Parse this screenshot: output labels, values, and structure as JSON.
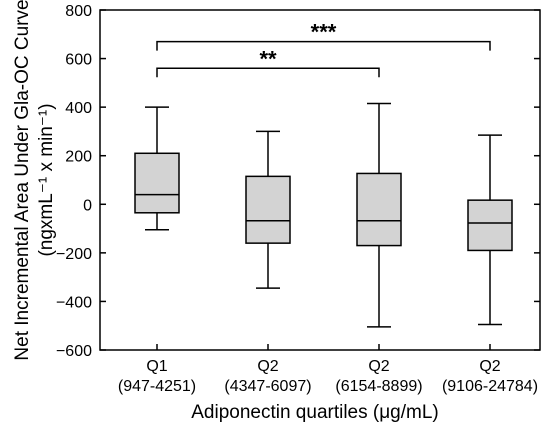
{
  "chart_data": {
    "type": "box",
    "title": "",
    "ylabel_line1": "Net Incremental Area Under Gla-OC Curve",
    "ylabel_line2": "(ngxmL⁻¹ x min⁻¹)",
    "xlabel": "Adiponectin quartiles (μg/mL)",
    "ylim": [
      -600,
      800
    ],
    "yticks": [
      -600,
      -400,
      -200,
      0,
      200,
      400,
      600,
      800
    ],
    "categories": [
      {
        "label": "Q1",
        "range": "(947-4251)"
      },
      {
        "label": "Q2",
        "range": "(4347-6097)"
      },
      {
        "label": "Q2",
        "range": "(6154-8899)"
      },
      {
        "label": "Q2",
        "range": "(9106-24784)"
      }
    ],
    "boxes": [
      {
        "whisker_low": -105,
        "q1": -35,
        "median": 40,
        "q3": 210,
        "whisker_high": 400
      },
      {
        "whisker_low": -345,
        "q1": -160,
        "median": -68,
        "q3": 115,
        "whisker_high": 300
      },
      {
        "whisker_low": -505,
        "q1": -170,
        "median": -68,
        "q3": 127,
        "whisker_high": 415
      },
      {
        "whisker_low": -495,
        "q1": -190,
        "median": -77,
        "q3": 17,
        "whisker_high": 285
      }
    ],
    "significance": [
      {
        "from": 0,
        "to": 2,
        "y": 560,
        "label": "**"
      },
      {
        "from": 0,
        "to": 3,
        "y": 670,
        "label": "***"
      }
    ],
    "colors": {
      "box_fill": "#d3d3d3",
      "stroke": "#000000"
    }
  }
}
